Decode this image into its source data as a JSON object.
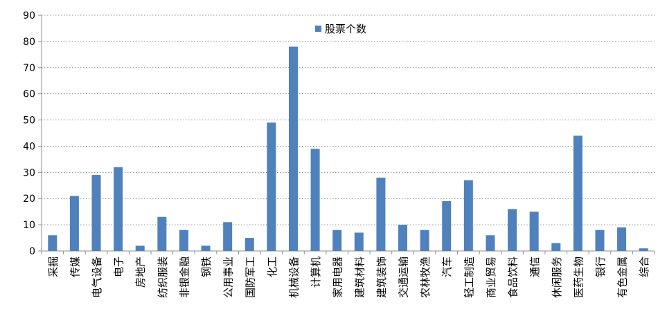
{
  "chart_data": {
    "type": "bar",
    "categories": [
      "采掘",
      "传媒",
      "电气设备",
      "电子",
      "房地产",
      "纺织服装",
      "非银金融",
      "钢铁",
      "公用事业",
      "国防军工",
      "化工",
      "机械设备",
      "计算机",
      "家用电器",
      "建筑材料",
      "建筑装饰",
      "交通运输",
      "农林牧渔",
      "汽车",
      "轻工制造",
      "商业贸易",
      "食品饮料",
      "通信",
      "休闲服务",
      "医药生物",
      "银行",
      "有色金属",
      "综合"
    ],
    "series": [
      {
        "name": "股票个数",
        "values": [
          6,
          21,
          29,
          32,
          2,
          13,
          8,
          2,
          11,
          5,
          49,
          78,
          39,
          8,
          7,
          28,
          10,
          8,
          19,
          27,
          6,
          16,
          15,
          3,
          44,
          8,
          9,
          1
        ]
      }
    ],
    "ylim": [
      0,
      90
    ],
    "yticks": [
      0,
      10,
      20,
      30,
      40,
      50,
      60,
      70,
      80,
      90
    ],
    "grid": true,
    "legend_position": "top-center",
    "colors": {
      "bar": "#4F81BD",
      "grid": "#8c8c8c",
      "axis": "#8c8c8c"
    }
  }
}
